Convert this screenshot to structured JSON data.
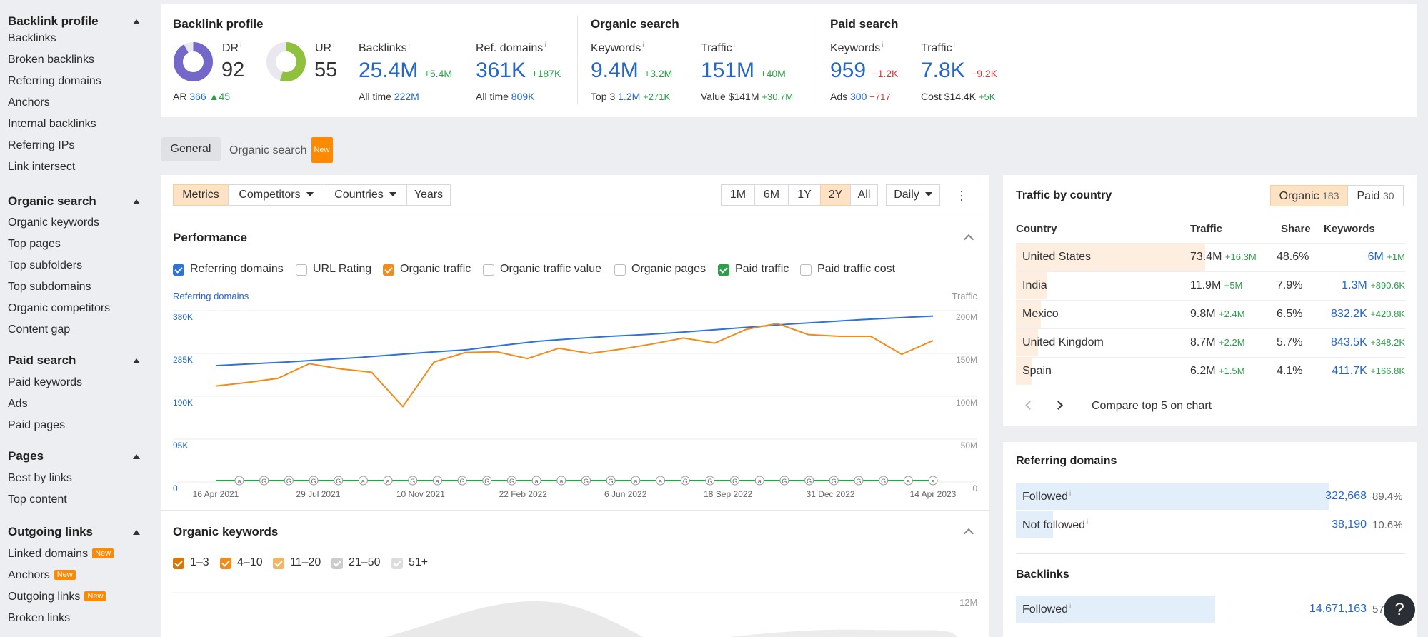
{
  "sidebar": {
    "groups": [
      {
        "title": "Backlink profile",
        "items": [
          "Backlinks",
          "Broken backlinks",
          "Referring domains",
          "Anchors",
          "Internal backlinks",
          "Referring IPs",
          "Link intersect"
        ]
      },
      {
        "title": "Organic search",
        "items": [
          "Organic keywords",
          "Top pages",
          "Top subfolders",
          "Top subdomains",
          "Organic competitors",
          "Content gap"
        ]
      },
      {
        "title": "Paid search",
        "items": [
          "Paid keywords",
          "Ads",
          "Paid pages"
        ]
      },
      {
        "title": "Pages",
        "items": [
          "Best by links",
          "Top content"
        ]
      },
      {
        "title": "Outgoing links",
        "items": [
          "Linked domains",
          "Anchors",
          "Outgoing links",
          "Broken links"
        ]
      }
    ],
    "new_badge": "New"
  },
  "metrics": {
    "backlink_title": "Backlink profile",
    "dr_label": "DR",
    "dr_value": "92",
    "dr_fraction": 0.92,
    "ur_label": "UR",
    "ur_value": "55",
    "ur_fraction": 0.55,
    "ar_label": "AR",
    "ar_value": "366",
    "ar_delta": "45",
    "backlinks_label": "Backlinks",
    "backlinks_value": "25.4M",
    "backlinks_delta": "+5.4M",
    "backlinks_alltime_label": "All time",
    "backlinks_alltime": "222M",
    "refdomains_label": "Ref. domains",
    "refdomains_value": "361K",
    "refdomains_delta": "+187K",
    "refdomains_alltime_label": "All time",
    "refdomains_alltime": "809K",
    "organic_title": "Organic search",
    "org_kw_label": "Keywords",
    "org_kw_value": "9.4M",
    "org_kw_delta": "+3.2M",
    "org_top3_label": "Top 3",
    "org_top3": "1.2M",
    "org_top3_delta": "+271K",
    "org_tr_label": "Traffic",
    "org_tr_value": "151M",
    "org_tr_delta": "+40M",
    "org_val_label": "Value",
    "org_val": "$141M",
    "org_val_delta": "+30.7M",
    "paid_title": "Paid search",
    "paid_kw_label": "Keywords",
    "paid_kw_value": "959",
    "paid_kw_delta": "−1.2K",
    "paid_ads_label": "Ads",
    "paid_ads": "300",
    "paid_ads_delta": "−717",
    "paid_tr_label": "Traffic",
    "paid_tr_value": "7.8K",
    "paid_tr_delta": "−9.2K",
    "paid_cost_label": "Cost",
    "paid_cost": "$14.4K",
    "paid_cost_delta": "+5K"
  },
  "tabs": {
    "general": "General",
    "organic": "Organic search",
    "organic_badge": "New"
  },
  "toolbar": {
    "metrics": "Metrics",
    "competitors": "Competitors",
    "countries": "Countries",
    "years": "Years",
    "ranges": [
      "1M",
      "6M",
      "1Y",
      "2Y",
      "All"
    ],
    "active_range": "2Y",
    "interval": "Daily"
  },
  "performance": {
    "title": "Performance",
    "checks": [
      {
        "label": "Referring domains",
        "on": true,
        "color": "#2f73d9"
      },
      {
        "label": "URL Rating",
        "on": false,
        "color": ""
      },
      {
        "label": "Organic traffic",
        "on": true,
        "color": "#f08c1c"
      },
      {
        "label": "Organic traffic value",
        "on": false,
        "color": ""
      },
      {
        "label": "Organic pages",
        "on": false,
        "color": ""
      },
      {
        "label": "Paid traffic",
        "on": true,
        "color": "#2c9f4b"
      },
      {
        "label": "Paid traffic cost",
        "on": false,
        "color": ""
      }
    ]
  },
  "chart_data": {
    "type": "line",
    "left_axis_title": "Referring domains",
    "right_axis_title": "Traffic",
    "left_ticks": [
      "380K",
      "285K",
      "190K",
      "95K",
      "0"
    ],
    "right_ticks": [
      "200M",
      "150M",
      "100M",
      "50M",
      "0"
    ],
    "ylim_left": [
      0,
      380000
    ],
    "ylim_right": [
      0,
      200000000
    ],
    "x_labels": [
      "16 Apr 2021",
      "29 Jul 2021",
      "10 Nov 2021",
      "22 Feb 2022",
      "6 Jun 2022",
      "18 Sep 2022",
      "31 Dec 2022",
      "14 Apr 2023"
    ],
    "series": [
      {
        "name": "Referring domains",
        "axis": "left",
        "color": "#2f73d9",
        "values": [
          258000,
          262000,
          266000,
          271000,
          276000,
          282000,
          288000,
          293000,
          303000,
          312000,
          318000,
          323000,
          327000,
          332000,
          338000,
          344000,
          350000,
          355000,
          360000,
          364000,
          368000
        ]
      },
      {
        "name": "Organic traffic",
        "axis": "right",
        "color": "#f08c1c",
        "values": [
          112000000,
          116000000,
          121000000,
          138000000,
          132000000,
          128000000,
          88000000,
          140000000,
          151000000,
          152000000,
          144000000,
          156000000,
          150000000,
          155000000,
          161000000,
          168000000,
          162000000,
          178000000,
          185000000,
          172000000,
          170000000,
          170000000,
          149000000,
          165000000
        ]
      },
      {
        "name": "Paid traffic",
        "axis": "right",
        "color": "#2c9f4b",
        "values": [
          0,
          0,
          0,
          0,
          0,
          0,
          0,
          0
        ]
      }
    ],
    "annotations": [
      "a",
      "G",
      "G",
      "G",
      "G",
      "a",
      "a",
      "G",
      "a",
      "G",
      "G",
      "G",
      "a",
      "a",
      "G",
      "G",
      "a",
      "a",
      "G",
      "G",
      "G",
      "a",
      "G",
      "G",
      "G",
      "G",
      "G",
      "a",
      "a"
    ]
  },
  "organic_keywords": {
    "title": "Organic keywords",
    "checks": [
      {
        "label": "1–3",
        "color": "#d97700"
      },
      {
        "label": "4–10",
        "color": "#f08c1c"
      },
      {
        "label": "11–20",
        "color": "#f5b460"
      },
      {
        "label": "21–50",
        "color": "#cccccc"
      },
      {
        "label": "51+",
        "color": "#dddddd"
      }
    ],
    "right_tick": "12M"
  },
  "traffic_by_country": {
    "title": "Traffic by country",
    "organic_label": "Organic",
    "organic_count": "183",
    "paid_label": "Paid",
    "paid_count": "30",
    "headers": [
      "Country",
      "Traffic",
      "Share",
      "Keywords"
    ],
    "rows": [
      {
        "country": "United States",
        "traffic": "73.4M",
        "traffic_delta": "+16.3M",
        "share": "48.6%",
        "keywords": "6M",
        "kw_delta": "+1M",
        "share_frac": 0.486
      },
      {
        "country": "India",
        "traffic": "11.9M",
        "traffic_delta": "+5M",
        "share": "7.9%",
        "keywords": "1.3M",
        "kw_delta": "+890.6K",
        "share_frac": 0.079
      },
      {
        "country": "Mexico",
        "traffic": "9.8M",
        "traffic_delta": "+2.4M",
        "share": "6.5%",
        "keywords": "832.2K",
        "kw_delta": "+420.8K",
        "share_frac": 0.065
      },
      {
        "country": "United Kingdom",
        "traffic": "8.7M",
        "traffic_delta": "+2.2M",
        "share": "5.7%",
        "keywords": "843.5K",
        "kw_delta": "+348.2K",
        "share_frac": 0.057
      },
      {
        "country": "Spain",
        "traffic": "6.2M",
        "traffic_delta": "+1.5M",
        "share": "4.1%",
        "keywords": "411.7K",
        "kw_delta": "+166.8K",
        "share_frac": 0.041
      }
    ],
    "compare": "Compare top 5 on chart"
  },
  "refdomains_panel": {
    "title": "Referring domains",
    "rows": [
      {
        "label": "Followed",
        "value": "322,668",
        "pct": "89.4%",
        "frac": 0.894
      },
      {
        "label": "Not followed",
        "value": "38,190",
        "pct": "10.6%",
        "frac": 0.106
      }
    ]
  },
  "backlinks_panel": {
    "title": "Backlinks",
    "rows": [
      {
        "label": "Followed",
        "value": "14,671,163",
        "pct": "57",
        "frac": 0.57
      }
    ]
  },
  "help": "?"
}
